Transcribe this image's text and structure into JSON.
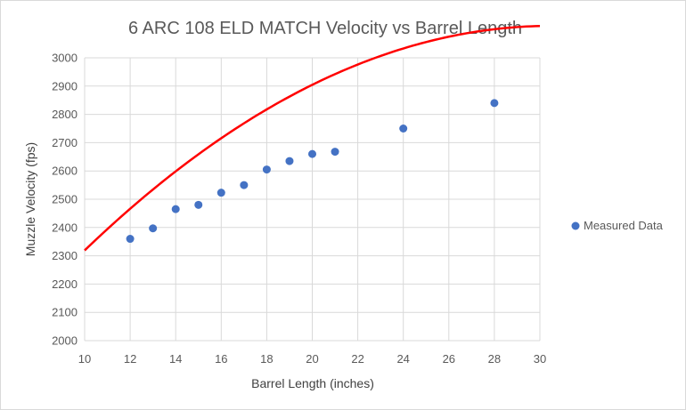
{
  "chart_data": {
    "type": "scatter",
    "title": "6 ARC 108 ELD MATCH Velocity vs Barrel Length",
    "xlabel": "Barrel Length (inches)",
    "ylabel": "Muzzle Velocity (fps)",
    "xlim": [
      10,
      30
    ],
    "ylim": [
      2000,
      3000
    ],
    "x_ticks": [
      10,
      12,
      14,
      16,
      18,
      20,
      22,
      24,
      26,
      28,
      30
    ],
    "y_ticks": [
      2000,
      2100,
      2200,
      2300,
      2400,
      2500,
      2600,
      2700,
      2800,
      2900,
      3000
    ],
    "grid": true,
    "legend_position": "right",
    "series": [
      {
        "name": "Measured Data",
        "color": "#4472c4",
        "x": [
          12,
          13,
          14,
          15,
          16,
          17,
          18,
          19,
          20,
          21,
          24,
          28
        ],
        "y": [
          2360,
          2397,
          2465,
          2480,
          2523,
          2550,
          2605,
          2635,
          2660,
          2668,
          2750,
          2840
        ]
      }
    ],
    "trendline": {
      "type": "polynomial",
      "color": "#ff0000",
      "coefficients": [
        1356,
        115.175,
        -1.8875
      ]
    }
  }
}
